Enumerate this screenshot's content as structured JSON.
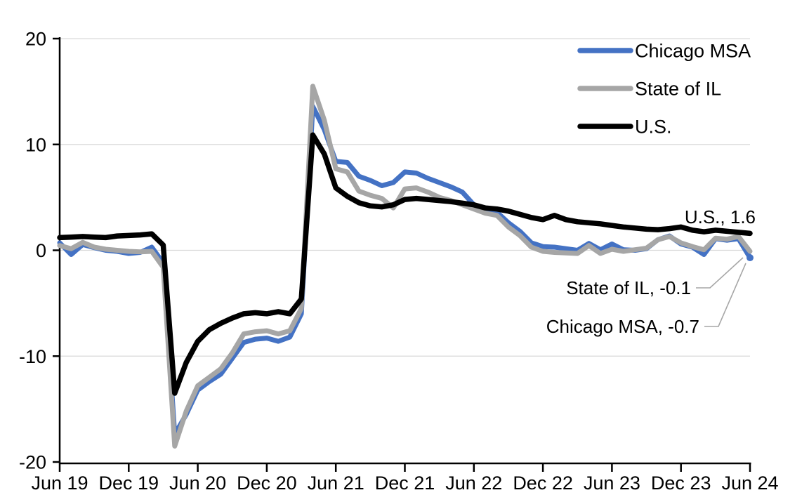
{
  "chart_data": {
    "type": "line",
    "title": "",
    "xlabel": "",
    "ylabel": "",
    "ylim": [
      -20,
      20
    ],
    "yticks": [
      20,
      10,
      0,
      -10,
      -20
    ],
    "grid": "horizontal",
    "gridline_color": "#d9d9d9",
    "axis_color": "#000000",
    "legend_position": "top-right",
    "x_unit": "month",
    "x": [
      "2019-06",
      "2019-07",
      "2019-08",
      "2019-09",
      "2019-10",
      "2019-11",
      "2019-12",
      "2020-01",
      "2020-02",
      "2020-03",
      "2020-04",
      "2020-05",
      "2020-06",
      "2020-07",
      "2020-08",
      "2020-09",
      "2020-10",
      "2020-11",
      "2020-12",
      "2021-01",
      "2021-02",
      "2021-03",
      "2021-04",
      "2021-05",
      "2021-06",
      "2021-07",
      "2021-08",
      "2021-09",
      "2021-10",
      "2021-11",
      "2021-12",
      "2022-01",
      "2022-02",
      "2022-03",
      "2022-04",
      "2022-05",
      "2022-06",
      "2022-07",
      "2022-08",
      "2022-09",
      "2022-10",
      "2022-11",
      "2022-12",
      "2023-01",
      "2023-02",
      "2023-03",
      "2023-04",
      "2023-05",
      "2023-06",
      "2023-07",
      "2023-08",
      "2023-09",
      "2023-10",
      "2023-11",
      "2023-12",
      "2024-01",
      "2024-02",
      "2024-03",
      "2024-04",
      "2024-05",
      "2024-06"
    ],
    "xticks": [
      {
        "label": "Jun 19",
        "index": 0
      },
      {
        "label": "Dec 19",
        "index": 6
      },
      {
        "label": "Jun 20",
        "index": 12
      },
      {
        "label": "Dec 20",
        "index": 18
      },
      {
        "label": "Jun 21",
        "index": 24
      },
      {
        "label": "Dec 21",
        "index": 30
      },
      {
        "label": "Jun 22",
        "index": 36
      },
      {
        "label": "Dec 22",
        "index": 42
      },
      {
        "label": "Jun 23",
        "index": 48
      },
      {
        "label": "Dec 23",
        "index": 54
      },
      {
        "label": "Jun 24",
        "index": 60
      }
    ],
    "series": [
      {
        "name": "Chicago MSA",
        "color": "#4472c4",
        "end_value": -0.7,
        "values": [
          0.7,
          -0.4,
          0.55,
          0.25,
          0.0,
          -0.1,
          -0.3,
          -0.2,
          0.3,
          -1.2,
          -17.4,
          -15.5,
          -13.2,
          -12.4,
          -11.7,
          -10.2,
          -8.7,
          -8.4,
          -8.3,
          -8.6,
          -8.2,
          -6.0,
          13.6,
          11.4,
          8.4,
          8.3,
          7.0,
          6.6,
          6.1,
          6.4,
          7.4,
          7.3,
          6.8,
          6.4,
          6.0,
          5.5,
          4.3,
          3.9,
          3.6,
          2.6,
          1.8,
          0.7,
          0.35,
          0.3,
          0.15,
          0.0,
          0.65,
          0.05,
          0.6,
          0.05,
          0.0,
          0.15,
          1.0,
          1.35,
          0.6,
          0.3,
          -0.4,
          1.1,
          0.95,
          1.1,
          -0.7
        ]
      },
      {
        "name": "State of IL",
        "color": "#a6a6a6",
        "end_value": -0.1,
        "values": [
          0.45,
          0.15,
          0.75,
          0.3,
          0.1,
          0.0,
          -0.1,
          -0.15,
          -0.1,
          -1.6,
          -18.5,
          -15.2,
          -12.8,
          -12.0,
          -11.2,
          -9.7,
          -7.9,
          -7.7,
          -7.6,
          -7.9,
          -7.6,
          -5.5,
          15.5,
          12.3,
          7.7,
          7.4,
          5.6,
          5.2,
          4.9,
          4.0,
          5.8,
          5.9,
          5.5,
          5.0,
          4.7,
          4.3,
          3.9,
          3.5,
          3.3,
          2.2,
          1.4,
          0.3,
          -0.1,
          -0.2,
          -0.25,
          -0.3,
          0.45,
          -0.3,
          0.1,
          -0.1,
          0.05,
          0.2,
          1.0,
          1.3,
          0.7,
          0.35,
          0.05,
          1.15,
          1.05,
          1.3,
          -0.1
        ]
      },
      {
        "name": "U.S.",
        "color": "#000000",
        "end_value": 1.6,
        "values": [
          1.2,
          1.25,
          1.3,
          1.25,
          1.2,
          1.35,
          1.4,
          1.45,
          1.55,
          0.5,
          -13.5,
          -10.6,
          -8.6,
          -7.5,
          -6.9,
          -6.4,
          -6.0,
          -5.9,
          -6.0,
          -5.8,
          -6.0,
          -4.6,
          10.9,
          9.1,
          5.9,
          5.1,
          4.5,
          4.2,
          4.1,
          4.3,
          4.8,
          4.9,
          4.8,
          4.7,
          4.6,
          4.45,
          4.3,
          4.0,
          3.9,
          3.7,
          3.4,
          3.1,
          2.9,
          3.3,
          2.9,
          2.7,
          2.6,
          2.5,
          2.35,
          2.2,
          2.1,
          2.0,
          1.95,
          2.05,
          2.2,
          1.9,
          1.75,
          1.9,
          1.8,
          1.7,
          1.6
        ]
      }
    ],
    "annotations": [
      {
        "id": "us",
        "text": "U.S., 1.6",
        "color": "#595959"
      },
      {
        "id": "state-of-il",
        "text": "State of IL, -0.1",
        "color": "#595959"
      },
      {
        "id": "chicago-msa",
        "text": "Chicago MSA, -0.7",
        "color": "#595959"
      }
    ],
    "leader_line_color": "#a6a6a6"
  },
  "legend": {
    "items": [
      {
        "label": "Chicago MSA"
      },
      {
        "label": "State of IL"
      },
      {
        "label": "U.S."
      }
    ]
  }
}
